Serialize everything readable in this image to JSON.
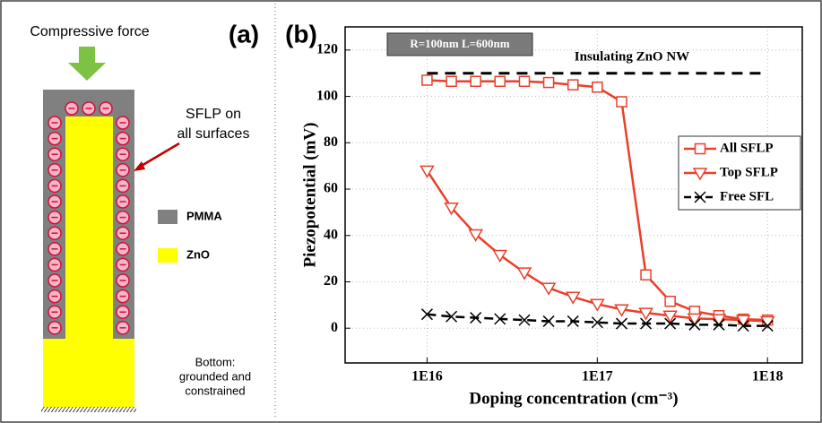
{
  "panel_labels": [
    "(a)",
    "(b)"
  ],
  "diagram": {
    "force_label": "Compressive force",
    "sflp_label": [
      "SFLP on",
      "all surfaces"
    ],
    "legend": [
      "PMMA",
      "ZnO"
    ],
    "bottom_label": [
      "Bottom:",
      "grounded and",
      "constrained"
    ]
  },
  "chart_data": {
    "type": "line",
    "xlabel": "Doping concentration (cm⁻³)",
    "ylabel": "Piezopotential (mV)",
    "inset": "R=100nm L=600nm",
    "annotation": {
      "text": "Insulating ZnO NW",
      "value": 110,
      "x": [
        1e+16,
        1e+18
      ],
      "color": "#000000"
    },
    "xscale": "log",
    "xlim": [
      3300000000000000.0,
      1.6e+18
    ],
    "xticks": [
      {
        "value": 1e+16,
        "label": "1E16"
      },
      {
        "value": 1e+17,
        "label": "1E17"
      },
      {
        "value": 1e+18,
        "label": "1E18"
      }
    ],
    "ylim": [
      -15,
      130
    ],
    "yticks": [
      0,
      20,
      40,
      60,
      80,
      100,
      120
    ],
    "grid": true,
    "legend": "right",
    "x": [
      1e+16,
      1.39e+16,
      1.93e+16,
      2.68e+16,
      3.73e+16,
      5.18e+16,
      7.2e+16,
      1e+17,
      1.39e+17,
      1.93e+17,
      2.68e+17,
      3.73e+17,
      5.18e+17,
      7.2e+17,
      1e+18
    ],
    "series": [
      {
        "name": "All SFLP",
        "color": "#e8402a",
        "marker": "square",
        "dash": false,
        "values": [
          107,
          106.5,
          106.5,
          106.5,
          106.5,
          106,
          105,
          104,
          97.7,
          23,
          11.6,
          7.3,
          5.4,
          3.9,
          3.5
        ]
      },
      {
        "name": "Top SFLP",
        "color": "#e8402a",
        "marker": "triangle-down",
        "dash": false,
        "values": [
          68,
          52,
          40.5,
          31.6,
          24,
          17.4,
          13.5,
          10.4,
          8.1,
          6.6,
          5.4,
          4.2,
          3.9,
          3.5,
          3
        ]
      },
      {
        "name": "Free SFL",
        "color": "#000000",
        "marker": "x",
        "dash": true,
        "values": [
          6,
          5,
          4.5,
          4,
          3.5,
          3,
          3,
          2.5,
          2,
          2,
          2,
          1.5,
          1.5,
          1,
          1
        ]
      }
    ]
  }
}
